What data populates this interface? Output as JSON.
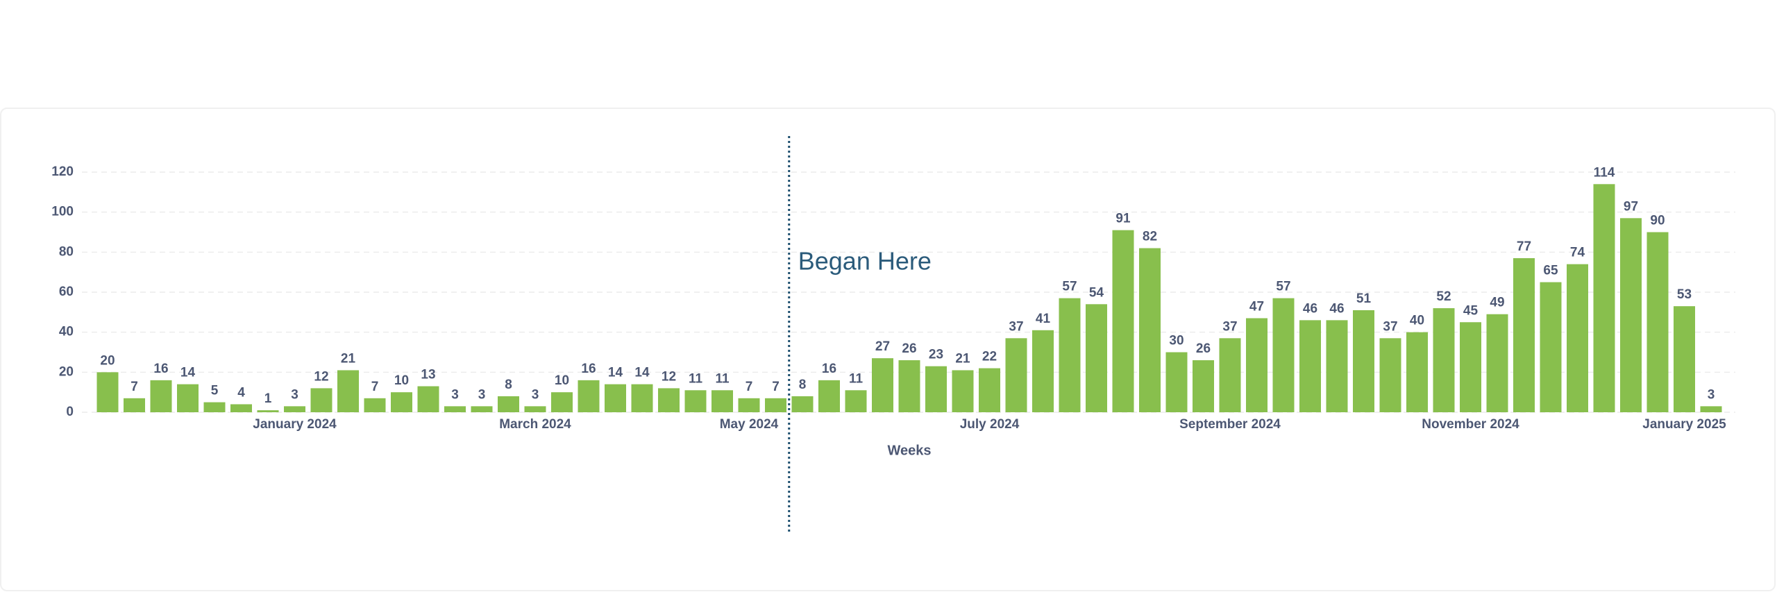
{
  "chart_data": {
    "type": "bar",
    "x_label": "Weeks",
    "annotation": "Began Here",
    "categories": [
      null,
      null,
      null,
      null,
      null,
      null,
      null,
      "January 2024",
      null,
      null,
      null,
      null,
      null,
      null,
      null,
      null,
      "March 2024",
      null,
      null,
      null,
      null,
      null,
      null,
      null,
      "May 2024",
      null,
      null,
      null,
      null,
      null,
      null,
      null,
      null,
      "July 2024",
      null,
      null,
      null,
      null,
      null,
      null,
      null,
      null,
      "September 2024",
      null,
      null,
      null,
      null,
      null,
      null,
      null,
      null,
      "November 2024",
      null,
      null,
      null,
      null,
      null,
      null,
      null,
      "January 2025",
      null
    ],
    "values": [
      20,
      7,
      16,
      14,
      5,
      4,
      1,
      3,
      12,
      21,
      7,
      10,
      13,
      3,
      3,
      8,
      3,
      10,
      16,
      14,
      14,
      12,
      11,
      11,
      7,
      7,
      8,
      16,
      11,
      27,
      26,
      23,
      21,
      22,
      37,
      41,
      57,
      54,
      91,
      82,
      30,
      26,
      37,
      47,
      57,
      46,
      46,
      51,
      37,
      40,
      52,
      45,
      49,
      77,
      65,
      74,
      114,
      97,
      90,
      53,
      3
    ],
    "color": "#88bf4d",
    "ylim": [
      0,
      120
    ],
    "yticks": [
      0,
      20,
      40,
      60,
      80,
      100,
      120
    ],
    "grid": true
  }
}
